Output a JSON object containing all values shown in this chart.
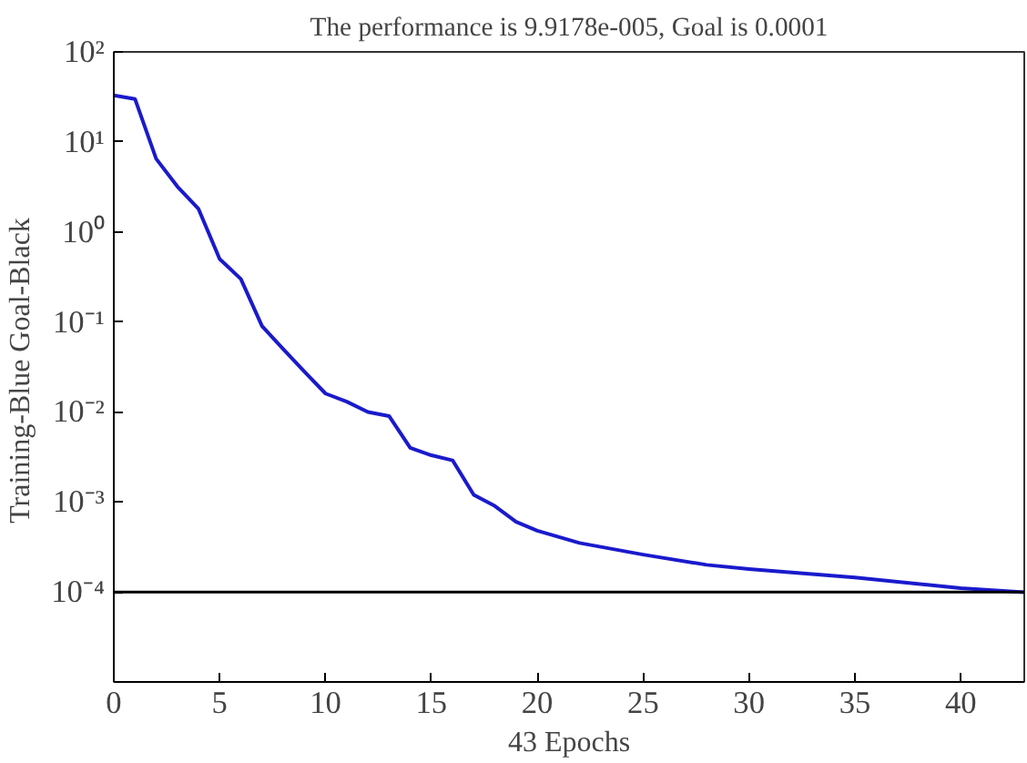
{
  "chart_data": {
    "type": "line",
    "title": "The performance is 9.9178e-005, Goal is 0.0001",
    "xlabel": "43 Epochs",
    "ylabel": "Training-Blue  Goal-Black",
    "log": "y",
    "grid": false,
    "x": [
      0,
      1,
      2,
      3,
      4,
      5,
      6,
      7,
      8,
      9,
      10,
      11,
      12,
      13,
      14,
      15,
      16,
      17,
      18,
      19,
      20,
      22,
      25,
      28,
      30,
      35,
      40,
      43
    ],
    "series": [
      {
        "color": "#1a1acc",
        "values": [
          33,
          30,
          6.5,
          3.2,
          1.8,
          0.5,
          0.3,
          0.09,
          0.05,
          0.028,
          0.016,
          0.013,
          0.01,
          0.009,
          0.004,
          0.0033,
          0.0029,
          0.0012,
          0.0009,
          0.0006,
          0.00048,
          0.00035,
          0.00026,
          0.0002,
          0.00018,
          0.000145,
          0.00011,
          9.92e-05
        ]
      }
    ],
    "xlim": [
      0,
      43
    ],
    "xticks": [
      0,
      5,
      10,
      15,
      20,
      25,
      30,
      35,
      40
    ],
    "ylim": [
      1e-05,
      100
    ],
    "yticks": [
      {
        "value": 1e-05,
        "label": null
      },
      {
        "value": 0.0001,
        "label": "10⁻⁴"
      },
      {
        "value": 0.001,
        "label": "10⁻³"
      },
      {
        "value": 0.01,
        "label": "10⁻²"
      },
      {
        "value": 0.1,
        "label": "10⁻¹"
      },
      {
        "value": 1,
        "label": "10⁰"
      },
      {
        "value": 10,
        "label": "10¹"
      },
      {
        "value": 100,
        "label": "10²"
      }
    ],
    "ref_lines": [
      {
        "axis": "y",
        "value": 0.0001,
        "label": null,
        "color": "#000000"
      }
    ]
  }
}
